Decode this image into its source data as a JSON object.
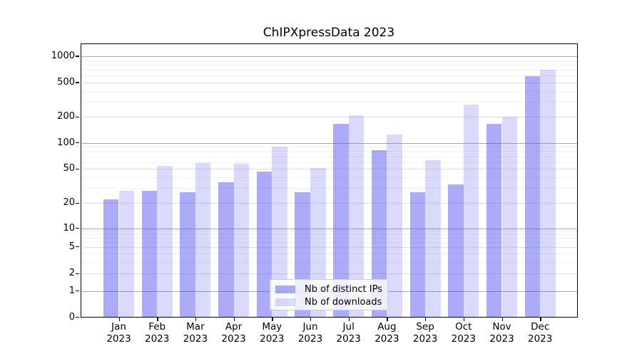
{
  "title": "ChIPXpressData 2023",
  "chart_data": {
    "type": "bar",
    "title": "ChIPXpressData 2023",
    "scale": "symlog",
    "grid": true,
    "legend_position": "lower center",
    "categories": [
      "Jan",
      "Feb",
      "Mar",
      "Apr",
      "May",
      "Jun",
      "Jul",
      "Aug",
      "Sep",
      "Oct",
      "Nov",
      "Dec"
    ],
    "category_year": "2023",
    "y_ticks": [
      0,
      1,
      2,
      5,
      10,
      20,
      50,
      100,
      200,
      500,
      1000
    ],
    "ylim": [
      0,
      1400
    ],
    "series": [
      {
        "name": "Nb of distinct IPs",
        "color": "rgba(72,72,242,0.46)",
        "values": [
          22,
          28,
          27,
          35,
          47,
          27,
          165,
          83,
          27,
          33,
          165,
          590
        ]
      },
      {
        "name": "Nb of downloads",
        "color": "rgba(72,72,242,0.2)",
        "values": [
          28,
          54,
          58,
          57,
          90,
          51,
          210,
          125,
          63,
          280,
          200,
          700
        ]
      }
    ],
    "colors": {
      "distinct_ips_bar": "#a9a9f8",
      "downloads_bar": "#dadafb",
      "major_gridline": "#aaaaaa",
      "labeled_gridline": "#e0e0e0",
      "minor_gridline": "#f0f0f0",
      "axis": "#000000"
    }
  },
  "legend": {
    "items": [
      {
        "label": "Nb of distinct IPs"
      },
      {
        "label": "Nb of downloads"
      }
    ]
  }
}
